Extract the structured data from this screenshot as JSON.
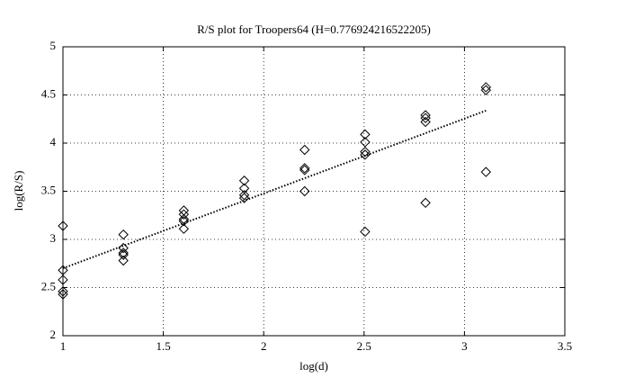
{
  "chart_data": {
    "type": "scatter",
    "title": "R/S plot for Troopers64 (H=0.776924216522205)",
    "xlabel": "log(d)",
    "ylabel": "log(R/S)",
    "xlim": [
      1,
      3.5
    ],
    "xticks": [
      1,
      1.5,
      2,
      2.5,
      3,
      3.5
    ],
    "ylim": [
      2,
      5
    ],
    "yticks": [
      2,
      2.5,
      3,
      3.5,
      4,
      4.5,
      5
    ],
    "grid": true,
    "series": [
      {
        "type": "scatter",
        "marker": "diamond",
        "color": "#000000",
        "x": [
          1,
          1,
          1,
          1,
          1,
          1.301,
          1.301,
          1.301,
          1.301,
          1.301,
          1.602,
          1.602,
          1.602,
          1.602,
          1.602,
          1.903,
          1.903,
          1.903,
          1.903,
          2.204,
          2.204,
          2.204,
          2.204,
          2.505,
          2.505,
          2.505,
          2.505,
          2.505,
          2.806,
          2.806,
          2.806,
          2.806,
          3.107,
          3.107,
          3.107
        ],
        "values": [
          3.14,
          2.68,
          2.58,
          2.46,
          2.43,
          3.05,
          2.91,
          2.86,
          2.84,
          2.78,
          3.3,
          3.26,
          3.21,
          3.19,
          3.11,
          3.61,
          3.53,
          3.46,
          3.43,
          3.93,
          3.74,
          3.72,
          3.5,
          4.09,
          4.01,
          3.91,
          3.88,
          3.08,
          4.29,
          4.26,
          4.22,
          3.38,
          4.58,
          4.55,
          3.7
        ]
      },
      {
        "type": "line",
        "dash": "dotted",
        "color": "#000000",
        "x": [
          1,
          3.107
        ],
        "values": [
          2.7,
          4.337
        ]
      }
    ]
  }
}
